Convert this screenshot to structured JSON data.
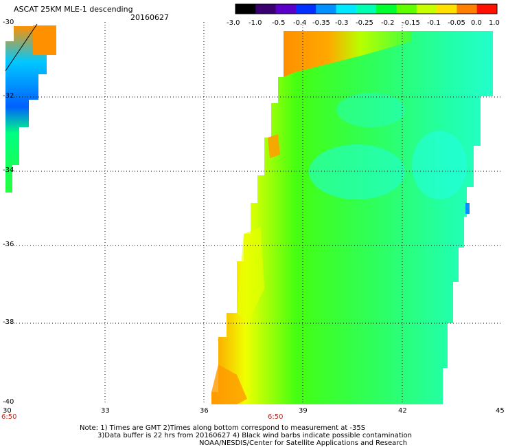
{
  "header": {
    "title": "ASCAT 25KM MLE-1 descending",
    "date": "20160627"
  },
  "colorbar": {
    "labels": [
      "-3.0",
      "-1.0",
      "-0.5",
      "-0.4",
      "-0.35",
      "-0.3",
      "-0.25",
      "-0.2",
      "-0.15",
      "-0.1",
      "-0.05",
      "0.0",
      "1.0"
    ],
    "colors": [
      "#000000",
      "#3a0070",
      "#5a00c8",
      "#0030ff",
      "#0090ff",
      "#00e8ff",
      "#00ffb0",
      "#00ff30",
      "#60ff00",
      "#c8ff00",
      "#ffe000",
      "#ff8000",
      "#ff1000"
    ]
  },
  "map": {
    "lon_labels": [
      "30",
      "33",
      "36",
      "39",
      "42",
      "45"
    ],
    "lat_labels": [
      "-30",
      "-32",
      "-34",
      "-36",
      "-38",
      "-40"
    ],
    "time_labels": [
      "6:50",
      "6:50"
    ]
  },
  "footer": {
    "line1": "Note: 1) Times are GMT 2)Times along bottom correspond to measurement at -35S",
    "line2": "3)Data buffer is 22 hrs from 20160627 4) Black wind barbs indicate possible contamination",
    "line3": "NOAA/NESDIS/Center for Satellite Applications and Research"
  }
}
